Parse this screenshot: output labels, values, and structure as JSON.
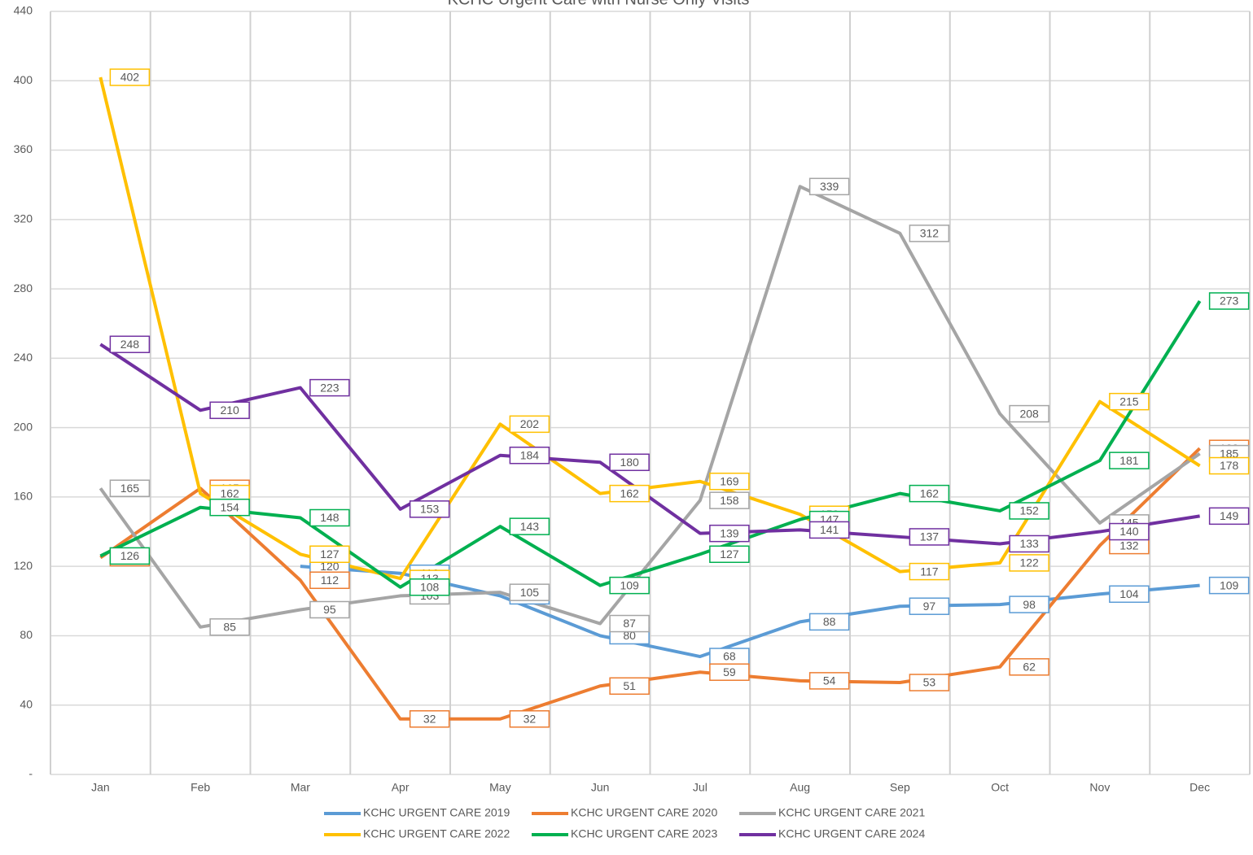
{
  "chart_data": {
    "type": "line",
    "title": "KCHC Urgent Care with Nurse Only Visits",
    "categories": [
      "Jan",
      "Feb",
      "Mar",
      "Apr",
      "May",
      "Jun",
      "Jul",
      "Aug",
      "Sep",
      "Oct",
      "Nov",
      "Dec"
    ],
    "series": [
      {
        "name": "KCHC URGENT CARE 2019",
        "color": "#5b9bd5",
        "values": [
          null,
          null,
          120,
          116,
          103,
          80,
          68,
          88,
          97,
          98,
          104,
          109
        ]
      },
      {
        "name": "KCHC URGENT CARE 2020",
        "color": "#ed7d31",
        "values": [
          125,
          165,
          112,
          32,
          32,
          51,
          59,
          54,
          53,
          62,
          132,
          188
        ]
      },
      {
        "name": "KCHC URGENT CARE 2021",
        "color": "#a5a5a5",
        "values": [
          165,
          85,
          95,
          103,
          105,
          87,
          158,
          339,
          312,
          208,
          145,
          185
        ]
      },
      {
        "name": "KCHC URGENT CARE 2022",
        "color": "#ffc000",
        "values": [
          402,
          162,
          127,
          113,
          202,
          162,
          169,
          150,
          117,
          122,
          215,
          178
        ]
      },
      {
        "name": "KCHC URGENT CARE 2023",
        "color": "#00b050",
        "values": [
          126,
          154,
          148,
          108,
          143,
          109,
          127,
          147,
          162,
          152,
          181,
          273
        ]
      },
      {
        "name": "KCHC URGENT CARE 2024",
        "color": "#7030a0",
        "values": [
          248,
          210,
          223,
          153,
          184,
          180,
          139,
          141,
          137,
          133,
          140,
          149
        ]
      }
    ],
    "ylim": [
      0,
      440
    ],
    "yticks": [
      {
        "value": 0,
        "label": "-"
      },
      40,
      80,
      120,
      160,
      200,
      240,
      280,
      320,
      360,
      400,
      440
    ],
    "grid": true
  }
}
